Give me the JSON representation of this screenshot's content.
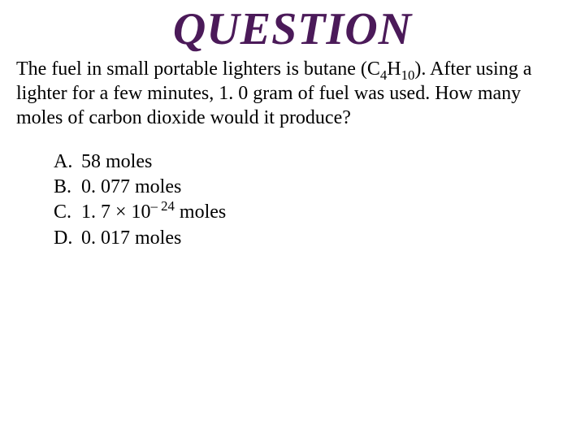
{
  "title": {
    "text": "QUESTION",
    "color": "#4b1a59",
    "fontsize": 56
  },
  "body": {
    "prefix": "The fuel in small portable lighters is butane (C",
    "sub1": "4",
    "mid": "H",
    "sub2": "10",
    "suffix": "). After using a lighter for a few minutes, 1. 0 gram of fuel was used.  How many moles of carbon dioxide would it produce?",
    "fontsize": 24,
    "color": "#000000"
  },
  "options": {
    "a": {
      "letter": "A.",
      "text": "58 moles"
    },
    "b": {
      "letter": "B.",
      "text": "0. 077 moles"
    },
    "c": {
      "letter": "C.",
      "prefix": "1. 7 ",
      "times": "×",
      "mid": " 10",
      "exp": "– 24",
      "suffix": " moles"
    },
    "d": {
      "letter": "D.",
      "text": "0. 017 moles"
    }
  },
  "colors": {
    "background": "#ffffff",
    "text": "#000000",
    "title": "#4b1a59"
  }
}
